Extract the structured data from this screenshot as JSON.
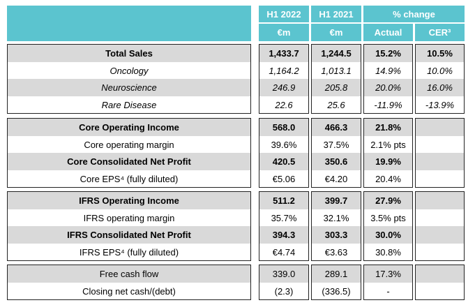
{
  "header": {
    "h1_2022": "H1 2022",
    "h1_2021": "H1 2021",
    "pct_change": "% change",
    "unit_2022": "€m",
    "unit_2021": "€m",
    "actual": "Actual",
    "cer": "CER³"
  },
  "sections": [
    {
      "rows": [
        {
          "label": "Total Sales",
          "v2022": "1,433.7",
          "v2021": "1,244.5",
          "actual": "15.2%",
          "cer": "10.5%",
          "style": "bold",
          "shade": true
        },
        {
          "label": "Oncology",
          "v2022": "1,164.2",
          "v2021": "1,013.1",
          "actual": "14.9%",
          "cer": "10.0%",
          "style": "italic",
          "shade": false
        },
        {
          "label": "Neuroscience",
          "v2022": "246.9",
          "v2021": "205.8",
          "actual": "20.0%",
          "cer": "16.0%",
          "style": "italic",
          "shade": true
        },
        {
          "label": "Rare Disease",
          "v2022": "22.6",
          "v2021": "25.6",
          "actual": "-11.9%",
          "cer": "-13.9%",
          "style": "italic",
          "shade": false
        }
      ]
    },
    {
      "rows": [
        {
          "label": "Core Operating Income",
          "v2022": "568.0",
          "v2021": "466.3",
          "actual": "21.8%",
          "cer": "",
          "style": "bold",
          "shade": true
        },
        {
          "label": "Core operating margin",
          "v2022": "39.6%",
          "v2021": "37.5%",
          "actual": "2.1% pts",
          "cer": "",
          "style": "normal",
          "shade": false
        },
        {
          "label": "Core Consolidated Net Profit",
          "v2022": "420.5",
          "v2021": "350.6",
          "actual": "19.9%",
          "cer": "",
          "style": "bold",
          "shade": true
        },
        {
          "label": "Core EPS⁴ (fully diluted)",
          "v2022": "€5.06",
          "v2021": "€4.20",
          "actual": "20.4%",
          "cer": "",
          "style": "normal",
          "shade": false
        }
      ]
    },
    {
      "rows": [
        {
          "label": "IFRS Operating Income",
          "v2022": "511.2",
          "v2021": "399.7",
          "actual": "27.9%",
          "cer": "",
          "style": "bold",
          "shade": true
        },
        {
          "label": "IFRS operating margin",
          "v2022": "35.7%",
          "v2021": "32.1%",
          "actual": "3.5% pts",
          "cer": "",
          "style": "normal",
          "shade": false
        },
        {
          "label": "IFRS Consolidated Net Profit",
          "v2022": "394.3",
          "v2021": "303.3",
          "actual": "30.0%",
          "cer": "",
          "style": "bold",
          "shade": true
        },
        {
          "label": "IFRS EPS⁴ (fully diluted)",
          "v2022": "€4.74",
          "v2021": "€3.63",
          "actual": "30.8%",
          "cer": "",
          "style": "normal",
          "shade": false
        }
      ]
    },
    {
      "rows": [
        {
          "label": "Free cash flow",
          "v2022": "339.0",
          "v2021": "289.1",
          "actual": "17.3%",
          "cer": "",
          "style": "normal",
          "shade": true
        },
        {
          "label": "Closing net cash/(debt)",
          "v2022": "(2.3)",
          "v2021": "(336.5)",
          "actual": "-",
          "cer": "",
          "style": "normal",
          "shade": false
        }
      ]
    }
  ]
}
